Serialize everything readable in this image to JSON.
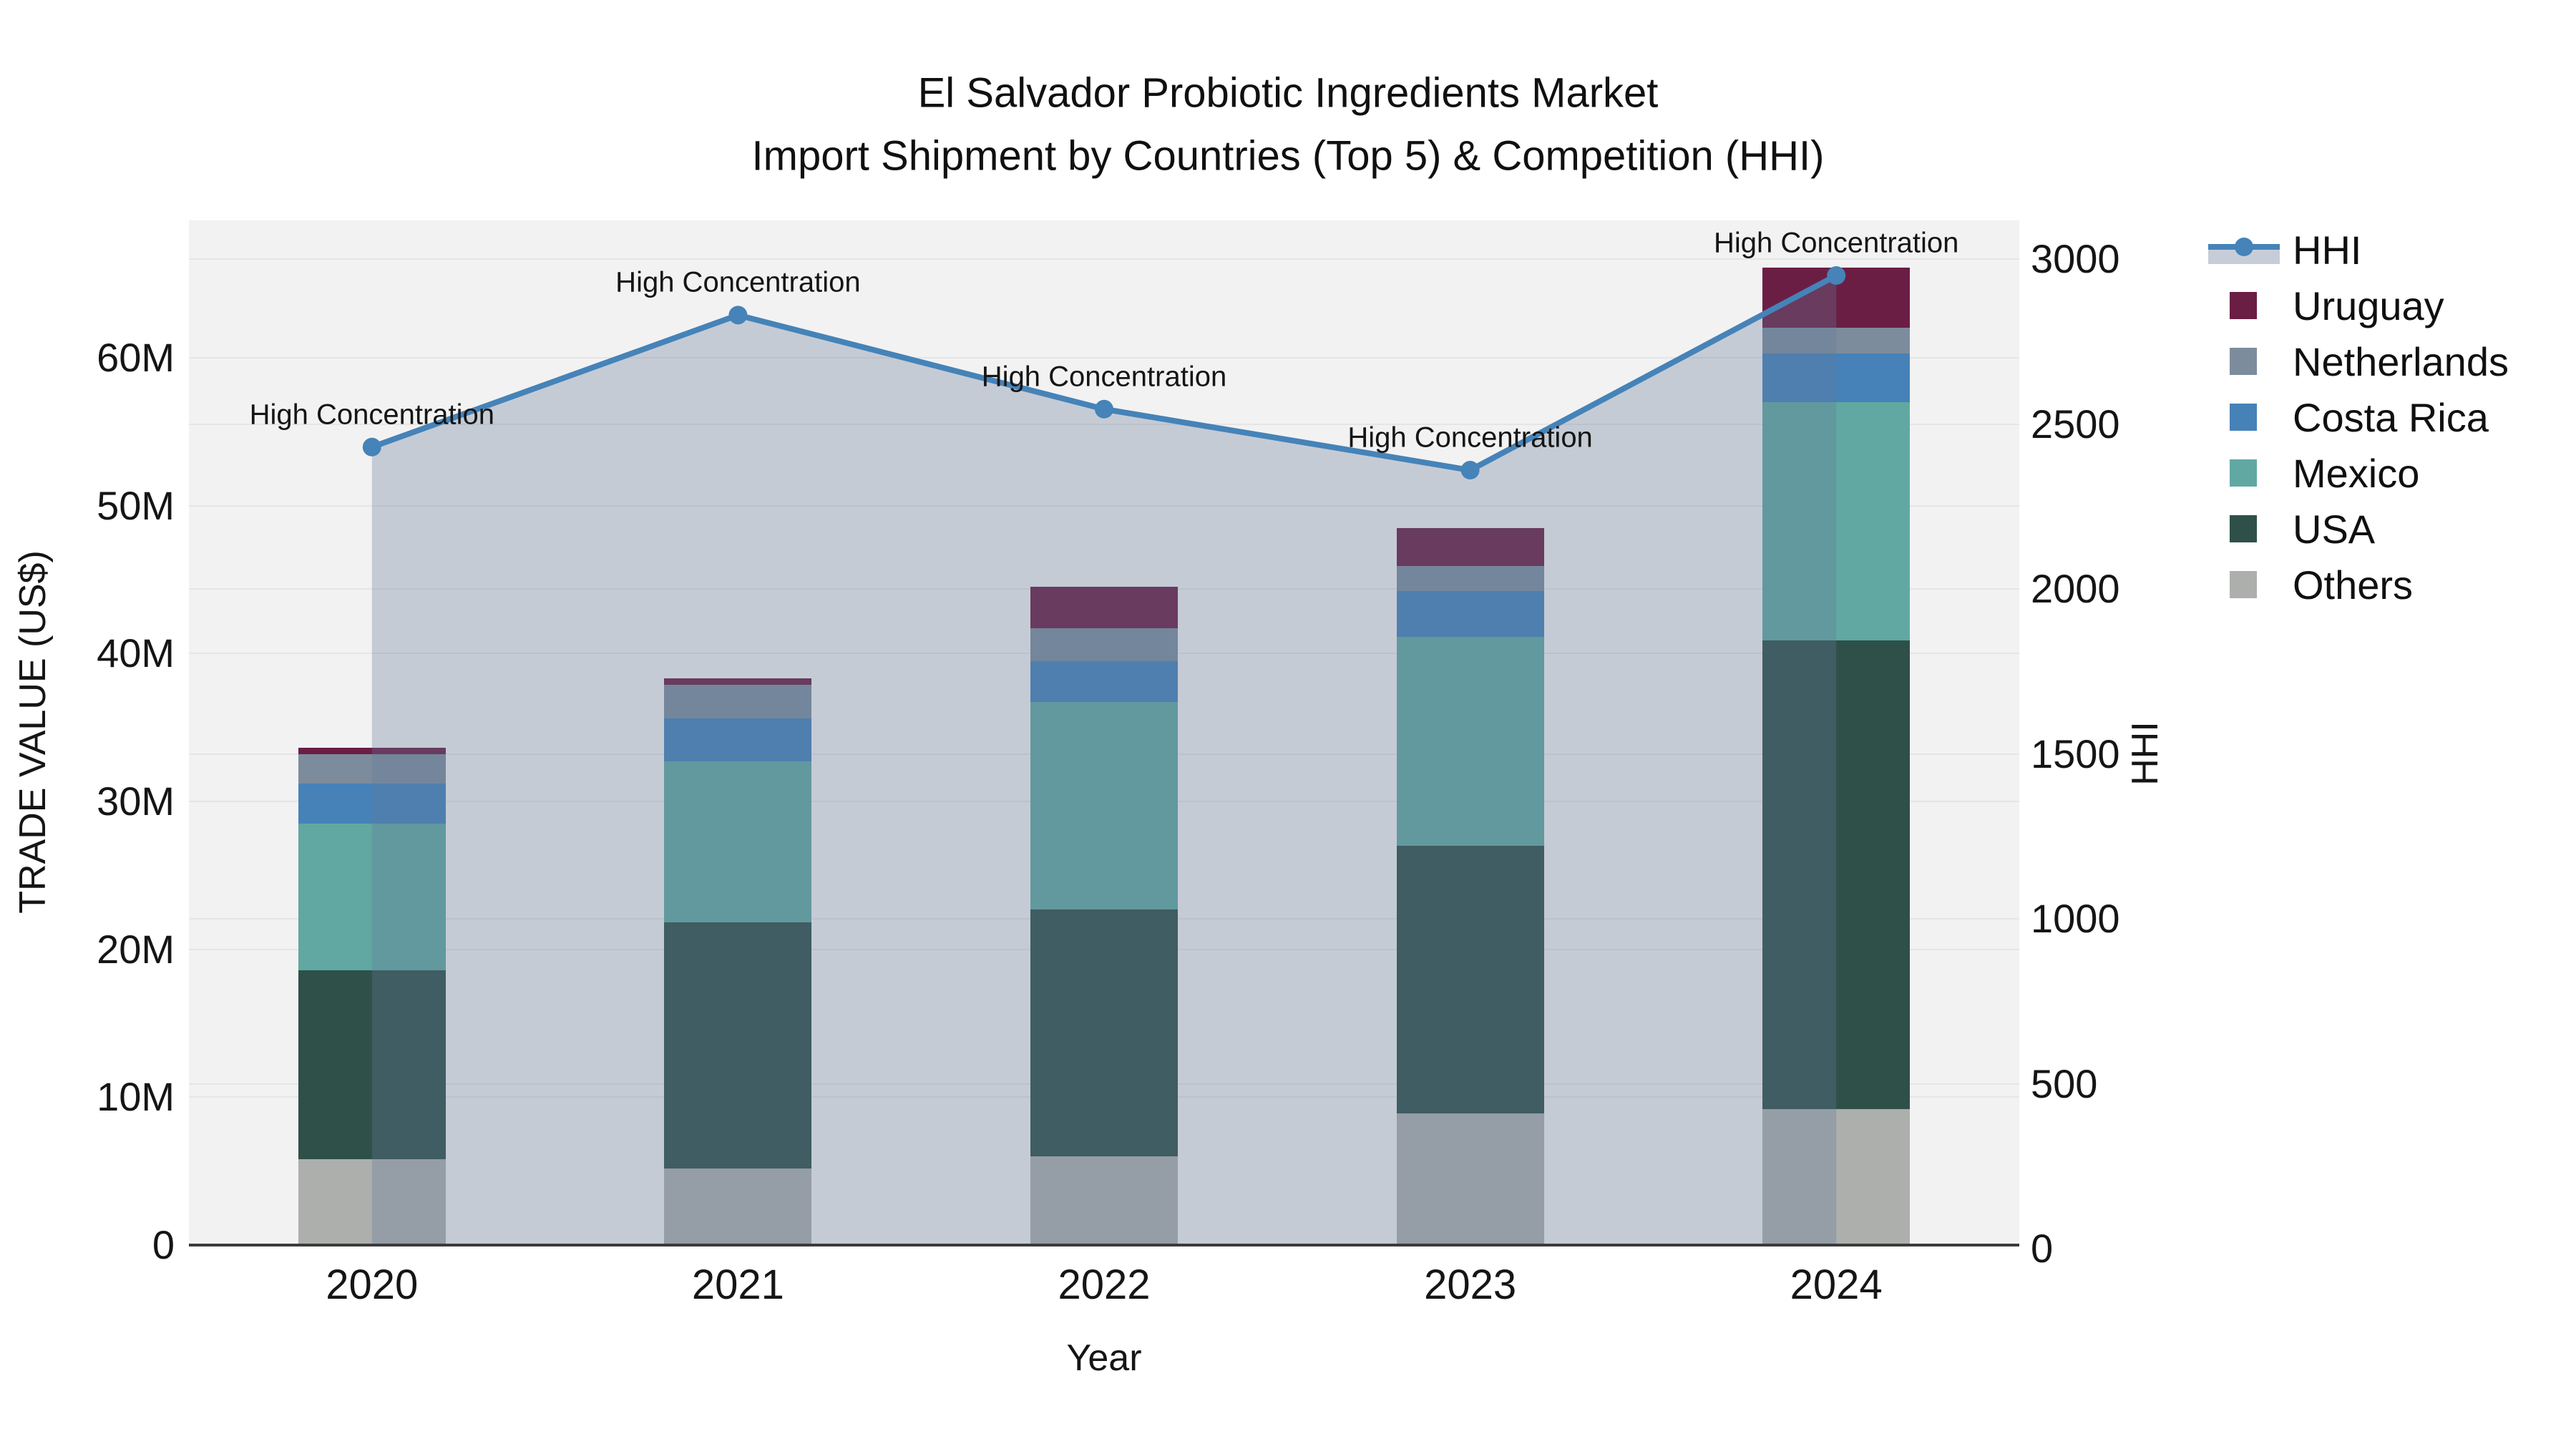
{
  "title": {
    "line1": "El Salvador Probiotic Ingredients Market",
    "line2": "Import Shipment by Countries (Top 5) & Competition (HHI)"
  },
  "axes": {
    "x_title": "Year",
    "y_left_title": "TRADE VALUE (US$)",
    "y_right_title": "HHI",
    "y_left_ticks": [
      {
        "label": "0",
        "value": 0
      },
      {
        "label": "10M",
        "value": 10
      },
      {
        "label": "20M",
        "value": 20
      },
      {
        "label": "30M",
        "value": 30
      },
      {
        "label": "40M",
        "value": 40
      },
      {
        "label": "50M",
        "value": 50
      },
      {
        "label": "60M",
        "value": 60
      }
    ],
    "y_right_ticks": [
      {
        "label": "0",
        "value": 0
      },
      {
        "label": "500",
        "value": 500
      },
      {
        "label": "1000",
        "value": 1000
      },
      {
        "label": "1500",
        "value": 1500
      },
      {
        "label": "2000",
        "value": 2000
      },
      {
        "label": "2500",
        "value": 2500
      },
      {
        "label": "3000",
        "value": 3000
      }
    ]
  },
  "chart_data": {
    "type": "bar",
    "subtype": "stacked-bars-with-line",
    "categories": [
      "2020",
      "2021",
      "2022",
      "2023",
      "2024"
    ],
    "value_unit": "million US$",
    "series": [
      {
        "name": "Others",
        "color": "#adafad",
        "values": [
          5.8,
          5.2,
          6.0,
          8.9,
          9.2
        ]
      },
      {
        "name": "USA",
        "color": "#2e5049",
        "values": [
          12.8,
          16.6,
          16.7,
          18.1,
          31.7
        ]
      },
      {
        "name": "Mexico",
        "color": "#61a8a2",
        "values": [
          9.9,
          10.9,
          14.0,
          14.1,
          16.1
        ]
      },
      {
        "name": "Costa Rica",
        "color": "#4682b8",
        "values": [
          2.7,
          2.9,
          2.8,
          3.1,
          3.3
        ]
      },
      {
        "name": "Netherlands",
        "color": "#7d8c9c",
        "values": [
          2.0,
          2.3,
          2.2,
          1.7,
          1.7
        ]
      },
      {
        "name": "Uruguay",
        "color": "#6b1e44",
        "values": [
          0.4,
          0.4,
          2.8,
          2.6,
          4.1
        ]
      }
    ],
    "line_series": {
      "name": "HHI",
      "axis": "right",
      "color": "#4583b8",
      "fill_color": "rgba(100,122,152,0.32)",
      "values": [
        2430,
        2830,
        2545,
        2360,
        2950
      ]
    },
    "annotations": [
      {
        "text": "High Concentration",
        "category_index": 0
      },
      {
        "text": "High Concentration",
        "category_index": 1
      },
      {
        "text": "High Concentration",
        "category_index": 2
      },
      {
        "text": "High Concentration",
        "category_index": 3
      },
      {
        "text": "High Concentration",
        "category_index": 4
      }
    ],
    "ylim_left_m": [
      0,
      69.3
    ],
    "ylim_right": [
      0,
      3000
    ],
    "grid": true,
    "legend_position": "right",
    "xlabel": "Year",
    "ylabel_left": "TRADE VALUE (US$)",
    "ylabel_right": "HHI"
  },
  "legend": {
    "items": [
      {
        "label": "HHI",
        "type": "line",
        "color": "#4583b8",
        "band_color": "#c6cdd8"
      },
      {
        "label": "Uruguay",
        "type": "swatch",
        "color": "#6b1e44"
      },
      {
        "label": "Netherlands",
        "type": "swatch",
        "color": "#7d8c9c"
      },
      {
        "label": "Costa Rica",
        "type": "swatch",
        "color": "#4682b8"
      },
      {
        "label": "Mexico",
        "type": "swatch",
        "color": "#61a8a2"
      },
      {
        "label": "USA",
        "type": "swatch",
        "color": "#2e5049"
      },
      {
        "label": "Others",
        "type": "swatch",
        "color": "#adafad"
      }
    ]
  }
}
